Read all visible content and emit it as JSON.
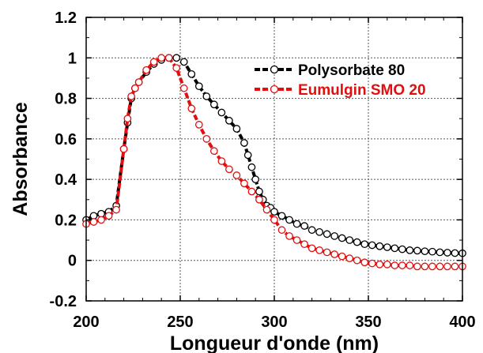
{
  "chart_data": {
    "type": "line",
    "title": "",
    "xlabel": "Longueur d'onde (nm)",
    "ylabel": "Absorbance",
    "xlim": [
      200,
      400
    ],
    "ylim": [
      -0.2,
      1.2
    ],
    "x_ticks": [
      200,
      250,
      300,
      350,
      400
    ],
    "x_tick_labels": [
      "200",
      "250",
      "300",
      "350",
      "400"
    ],
    "y_ticks": [
      -0.2,
      0,
      0.2,
      0.4,
      0.6,
      0.8,
      1,
      1.2
    ],
    "y_tick_labels": [
      "-0.2",
      "0",
      "0.2",
      "0.4",
      "0.6",
      "0.8",
      "1",
      "1.2"
    ],
    "grid": true,
    "legend_position": "top-right",
    "series": [
      {
        "name": "Polysorbate 80",
        "color": "#000000",
        "x": [
          200,
          204,
          208,
          212,
          216,
          220,
          222,
          224,
          226,
          228,
          232,
          236,
          240,
          244,
          248,
          252,
          256,
          260,
          264,
          268,
          272,
          276,
          280,
          284,
          286,
          288,
          290,
          292,
          294,
          296,
          298,
          300,
          304,
          308,
          312,
          316,
          320,
          324,
          328,
          332,
          336,
          340,
          344,
          348,
          352,
          356,
          360,
          364,
          368,
          372,
          376,
          380,
          384,
          388,
          392,
          396,
          400
        ],
        "y": [
          0.2,
          0.22,
          0.23,
          0.24,
          0.27,
          0.55,
          0.68,
          0.8,
          0.85,
          0.88,
          0.93,
          0.97,
          0.99,
          1.0,
          1.0,
          0.98,
          0.92,
          0.86,
          0.81,
          0.77,
          0.73,
          0.69,
          0.65,
          0.58,
          0.52,
          0.46,
          0.4,
          0.34,
          0.3,
          0.27,
          0.26,
          0.24,
          0.22,
          0.2,
          0.18,
          0.17,
          0.15,
          0.14,
          0.13,
          0.12,
          0.11,
          0.1,
          0.09,
          0.08,
          0.075,
          0.07,
          0.065,
          0.06,
          0.055,
          0.05,
          0.048,
          0.045,
          0.043,
          0.04,
          0.038,
          0.036,
          0.035
        ]
      },
      {
        "name": "Eumulgin SMO 20",
        "color": "#e01010",
        "x": [
          200,
          204,
          208,
          212,
          216,
          220,
          222,
          224,
          226,
          228,
          232,
          236,
          240,
          244,
          248,
          252,
          256,
          260,
          264,
          268,
          272,
          276,
          280,
          284,
          288,
          292,
          296,
          300,
          304,
          308,
          312,
          316,
          320,
          324,
          328,
          332,
          336,
          340,
          344,
          348,
          352,
          356,
          360,
          364,
          368,
          372,
          376,
          380,
          384,
          388,
          392,
          396,
          400
        ],
        "y": [
          0.18,
          0.19,
          0.2,
          0.22,
          0.25,
          0.55,
          0.7,
          0.81,
          0.85,
          0.88,
          0.94,
          0.98,
          1.0,
          1.0,
          0.95,
          0.85,
          0.75,
          0.67,
          0.6,
          0.54,
          0.49,
          0.45,
          0.42,
          0.38,
          0.34,
          0.3,
          0.25,
          0.2,
          0.15,
          0.12,
          0.1,
          0.08,
          0.06,
          0.05,
          0.04,
          0.03,
          0.02,
          0.01,
          0.0,
          -0.01,
          -0.015,
          -0.02,
          -0.02,
          -0.025,
          -0.025,
          -0.025,
          -0.03,
          -0.03,
          -0.03,
          -0.03,
          -0.03,
          -0.03,
          -0.03
        ]
      }
    ]
  }
}
